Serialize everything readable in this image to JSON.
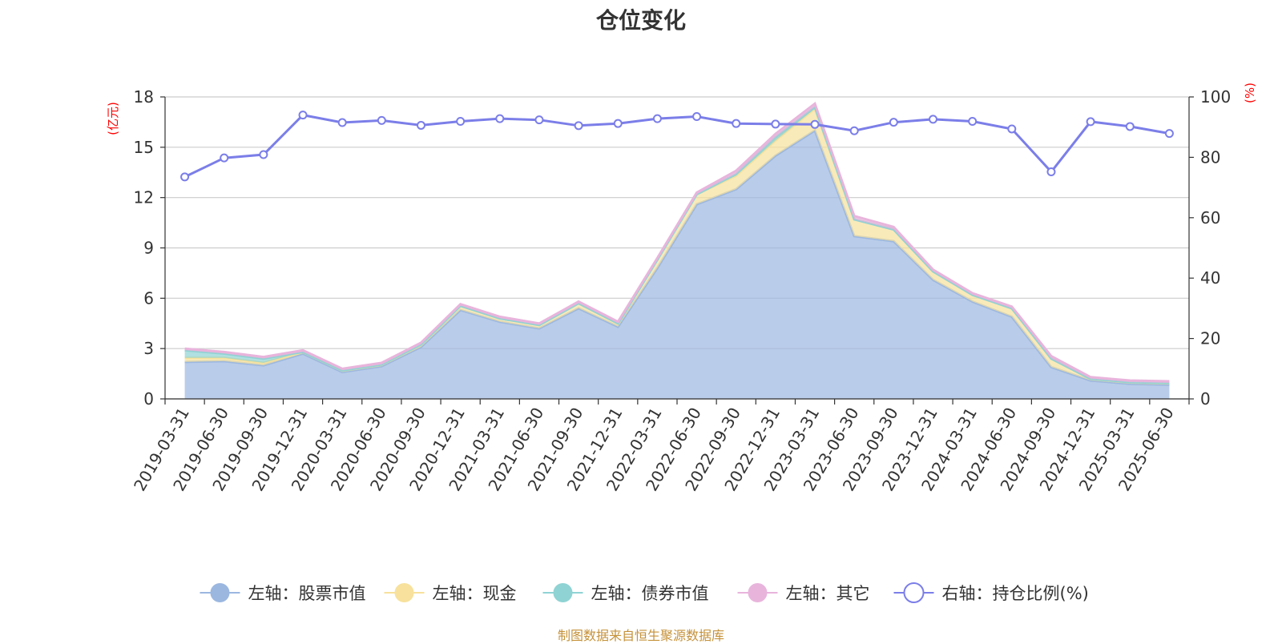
{
  "chart_data": {
    "type": "area",
    "title": "仓位变化",
    "categories": [
      "2019-03-31",
      "2019-06-30",
      "2019-09-30",
      "2019-12-31",
      "2020-03-31",
      "2020-06-30",
      "2020-09-30",
      "2020-12-31",
      "2021-03-31",
      "2021-06-30",
      "2021-09-30",
      "2021-12-31",
      "2022-03-31",
      "2022-06-30",
      "2022-09-30",
      "2022-12-31",
      "2023-03-31",
      "2023-06-30",
      "2023-09-30",
      "2023-12-31",
      "2024-03-31",
      "2024-06-30",
      "2024-09-30",
      "2024-12-31",
      "2025-03-31",
      "2025-06-30"
    ],
    "left_axis": {
      "unit": "(亿元)",
      "ylim": [
        0,
        18
      ],
      "ticks": [
        "0",
        "3",
        "6",
        "9",
        "12",
        "15",
        "18"
      ]
    },
    "right_axis": {
      "unit": "(%)",
      "ylim": [
        0,
        100
      ],
      "ticks": [
        "0",
        "20",
        "40",
        "60",
        "80",
        "100"
      ]
    },
    "grid": true,
    "legend_position": "bottom",
    "series": [
      {
        "name": "左轴：股票市值",
        "axis": "left",
        "stack": true,
        "color": "#9bb7e0",
        "values": [
          2.2,
          2.25,
          2.0,
          2.7,
          1.6,
          1.95,
          3.1,
          5.3,
          4.6,
          4.2,
          5.4,
          4.3,
          7.8,
          11.6,
          12.5,
          14.5,
          16.0,
          9.7,
          9.4,
          7.1,
          5.8,
          4.9,
          1.9,
          1.1,
          0.9,
          0.85
        ]
      },
      {
        "name": "左轴：现金",
        "axis": "left",
        "stack": true,
        "color": "#f7e19c",
        "values": [
          0.25,
          0.2,
          0.15,
          0.1,
          0.1,
          0.1,
          0.15,
          0.25,
          0.2,
          0.2,
          0.3,
          0.2,
          0.5,
          0.6,
          0.8,
          0.9,
          1.3,
          1.0,
          0.7,
          0.5,
          0.4,
          0.5,
          0.5,
          0.1,
          0.1,
          0.1
        ]
      },
      {
        "name": "左轴：债券市值",
        "axis": "left",
        "stack": true,
        "color": "#8fd3d4",
        "values": [
          0.45,
          0.25,
          0.25,
          0,
          0,
          0,
          0,
          0,
          0,
          0,
          0,
          0,
          0,
          0,
          0.1,
          0.2,
          0.1,
          0,
          0,
          0,
          0,
          0,
          0,
          0,
          0,
          0
        ]
      },
      {
        "name": "左轴：其它",
        "axis": "left",
        "stack": true,
        "color": "#e8b4dc",
        "values": [
          0.1,
          0.1,
          0.1,
          0.1,
          0.1,
          0.1,
          0.1,
          0.1,
          0.1,
          0.1,
          0.1,
          0.1,
          0.1,
          0.1,
          0.2,
          0.2,
          0.2,
          0.2,
          0.15,
          0.1,
          0.1,
          0.1,
          0.15,
          0.1,
          0.1,
          0.1
        ]
      },
      {
        "name": "右轴：持仓比例(%)",
        "axis": "right",
        "type": "line",
        "color": "#7b7ee8",
        "values": [
          73.5,
          79.8,
          80.9,
          94.0,
          91.5,
          92.2,
          90.6,
          91.9,
          92.8,
          92.4,
          90.5,
          91.2,
          92.8,
          93.5,
          91.2,
          91.0,
          90.9,
          88.8,
          91.6,
          92.6,
          91.9,
          89.4,
          75.2,
          91.8,
          90.2,
          87.9
        ]
      }
    ]
  },
  "footer": "制图数据来自恒生聚源数据库"
}
